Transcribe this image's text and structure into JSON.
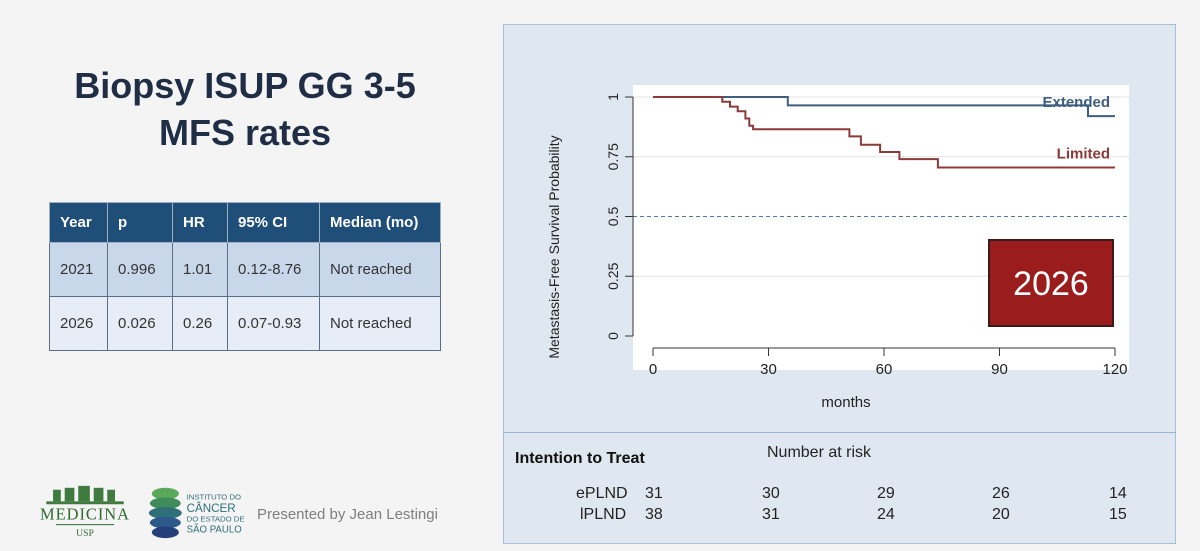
{
  "slide": {
    "title_line1": "Biopsy ISUP GG 3-5",
    "title_line2": "MFS rates",
    "presented_by": "Presented by Jean Lestingi"
  },
  "table": {
    "headers": [
      "Year",
      "p",
      "HR",
      "95% CI",
      "Median (mo)"
    ],
    "rows": [
      [
        "2021",
        "0.996",
        "1.01",
        "0.12-8.76",
        "Not reached"
      ],
      [
        "2026",
        "0.026",
        "0.26",
        "0.07-0.93",
        "Not reached"
      ]
    ]
  },
  "logos": {
    "medicina": "MEDICINA",
    "usp": "USP",
    "icesp_lines": [
      "INSTITUTO DO",
      "CÂNCER",
      "DO ESTADO DE",
      "SÃO PAULO"
    ]
  },
  "chart_data": {
    "type": "line",
    "ylabel": "Metastasis-Free Survival Probability",
    "xlabel": "months",
    "xlim": [
      0,
      120
    ],
    "ylim": [
      0,
      1
    ],
    "xticks": [
      "0",
      "30",
      "60",
      "90",
      "120"
    ],
    "yticks": [
      "0",
      "0.25",
      "0.5",
      "0.75",
      "1"
    ],
    "reference_line": 0.5,
    "badge": "2026",
    "series": [
      {
        "name": "Extended",
        "color": "#3e5e7e",
        "points": [
          [
            0,
            1
          ],
          [
            35,
            1
          ],
          [
            35,
            0.965
          ],
          [
            113,
            0.965
          ],
          [
            113,
            0.92
          ],
          [
            120,
            0.92
          ]
        ]
      },
      {
        "name": "Limited",
        "color": "#8c3a3a",
        "points": [
          [
            0,
            1
          ],
          [
            18,
            1
          ],
          [
            18,
            0.98
          ],
          [
            20,
            0.98
          ],
          [
            20,
            0.96
          ],
          [
            22,
            0.96
          ],
          [
            22,
            0.94
          ],
          [
            24,
            0.94
          ],
          [
            24,
            0.91
          ],
          [
            25,
            0.91
          ],
          [
            25,
            0.88
          ],
          [
            26,
            0.88
          ],
          [
            26,
            0.865
          ],
          [
            51,
            0.865
          ],
          [
            51,
            0.835
          ],
          [
            54,
            0.835
          ],
          [
            54,
            0.8
          ],
          [
            59,
            0.8
          ],
          [
            59,
            0.77
          ],
          [
            64,
            0.77
          ],
          [
            64,
            0.74
          ],
          [
            74,
            0.74
          ],
          [
            74,
            0.705
          ],
          [
            120,
            0.705
          ]
        ]
      }
    ],
    "risk_table": {
      "title": "Intention to Treat",
      "header": "Number at risk",
      "rows": [
        {
          "label": "ePLND",
          "values": [
            "31",
            "30",
            "29",
            "26",
            "14"
          ]
        },
        {
          "label": "lPLND",
          "values": [
            "38",
            "31",
            "24",
            "20",
            "15"
          ]
        }
      ]
    }
  }
}
